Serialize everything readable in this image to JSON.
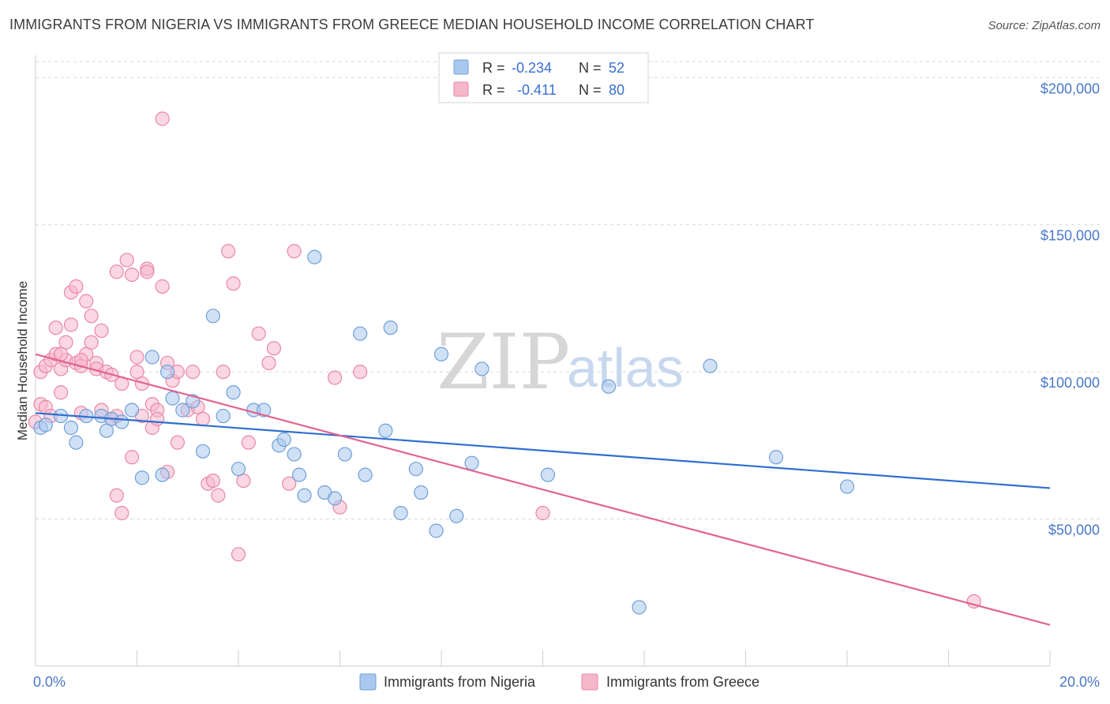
{
  "title": "IMMIGRANTS FROM NIGERIA VS IMMIGRANTS FROM GREECE MEDIAN HOUSEHOLD INCOME CORRELATION CHART",
  "source": "Source: ZipAtlas.com",
  "watermark": {
    "zip": "ZIP",
    "atlas": "atlas"
  },
  "colors": {
    "nigeria_fill": "#a9c8ee",
    "nigeria_stroke": "#6f9fd8",
    "nigeria_line": "#2f6fcf",
    "greece_fill": "#f5b7ca",
    "greece_stroke": "#e987a8",
    "greece_line": "#e0648f",
    "grid": "#d8d8d8",
    "tick_text": "#4a78c8"
  },
  "stats_box": {
    "rows": [
      {
        "r_label": "R =",
        "r_value": "-0.234",
        "n_label": "N =",
        "n_value": "52"
      },
      {
        "r_label": "R =",
        "r_value": "-0.411",
        "n_label": "N =",
        "n_value": "80"
      }
    ]
  },
  "chart_data": {
    "type": "scatter",
    "title": "IMMIGRANTS FROM NIGERIA VS IMMIGRANTS FROM GREECE MEDIAN HOUSEHOLD INCOME CORRELATION CHART",
    "xlabel": "",
    "ylabel": "Median Household Income",
    "xlim": [
      0,
      20
    ],
    "ylim": [
      0,
      210000
    ],
    "x_tick_labels": [
      {
        "value": 0,
        "label": "0.0%"
      },
      {
        "value": 20,
        "label": "20.0%"
      }
    ],
    "y_ticks": [
      {
        "value": 50000,
        "label": "$50,000"
      },
      {
        "value": 100000,
        "label": "$100,000"
      },
      {
        "value": 150000,
        "label": "$150,000"
      },
      {
        "value": 200000,
        "label": "$200,000"
      }
    ],
    "grid": "horizontal dashed",
    "legend_position": "bottom-center",
    "series": [
      {
        "name": "Immigrants from Nigeria",
        "trend": {
          "x": [
            0,
            20
          ],
          "y": [
            86000,
            60500
          ]
        },
        "points": [
          [
            0.1,
            81000
          ],
          [
            0.2,
            82000
          ],
          [
            0.5,
            85000
          ],
          [
            0.7,
            81000
          ],
          [
            0.8,
            76000
          ],
          [
            1.0,
            85000
          ],
          [
            1.3,
            85000
          ],
          [
            1.4,
            80000
          ],
          [
            1.5,
            84000
          ],
          [
            1.7,
            83000
          ],
          [
            1.9,
            87000
          ],
          [
            2.1,
            64000
          ],
          [
            2.3,
            105000
          ],
          [
            2.5,
            65000
          ],
          [
            2.6,
            100000
          ],
          [
            2.7,
            91000
          ],
          [
            2.9,
            87000
          ],
          [
            3.1,
            90000
          ],
          [
            3.3,
            73000
          ],
          [
            3.5,
            119000
          ],
          [
            3.7,
            85000
          ],
          [
            3.9,
            93000
          ],
          [
            4.0,
            67000
          ],
          [
            4.3,
            87000
          ],
          [
            4.5,
            87000
          ],
          [
            4.8,
            75000
          ],
          [
            4.9,
            77000
          ],
          [
            5.1,
            72000
          ],
          [
            5.2,
            65000
          ],
          [
            5.3,
            58000
          ],
          [
            5.5,
            139000
          ],
          [
            5.7,
            59000
          ],
          [
            5.9,
            57000
          ],
          [
            6.1,
            72000
          ],
          [
            6.4,
            113000
          ],
          [
            6.5,
            65000
          ],
          [
            6.9,
            80000
          ],
          [
            7.0,
            115000
          ],
          [
            7.2,
            52000
          ],
          [
            7.5,
            67000
          ],
          [
            7.6,
            59000
          ],
          [
            7.9,
            46000
          ],
          [
            8.0,
            106000
          ],
          [
            8.3,
            51000
          ],
          [
            8.6,
            69000
          ],
          [
            8.8,
            101000
          ],
          [
            10.1,
            65000
          ],
          [
            11.3,
            95000
          ],
          [
            11.9,
            20000
          ],
          [
            13.3,
            102000
          ],
          [
            14.6,
            71000
          ],
          [
            16.0,
            61000
          ]
        ]
      },
      {
        "name": "Immigrants from Greece",
        "trend": {
          "x": [
            0,
            20
          ],
          "y": [
            106000,
            14000
          ]
        },
        "points": [
          [
            0.0,
            83000
          ],
          [
            0.1,
            89000
          ],
          [
            0.1,
            100000
          ],
          [
            0.2,
            102000
          ],
          [
            0.2,
            88000
          ],
          [
            0.3,
            85000
          ],
          [
            0.3,
            104000
          ],
          [
            0.4,
            115000
          ],
          [
            0.4,
            106000
          ],
          [
            0.5,
            93000
          ],
          [
            0.5,
            101000
          ],
          [
            0.6,
            110000
          ],
          [
            0.6,
            104000
          ],
          [
            0.7,
            127000
          ],
          [
            0.7,
            116000
          ],
          [
            0.8,
            103000
          ],
          [
            0.8,
            129000
          ],
          [
            0.9,
            86000
          ],
          [
            0.9,
            102000
          ],
          [
            1.0,
            124000
          ],
          [
            1.0,
            106000
          ],
          [
            1.1,
            110000
          ],
          [
            1.1,
            119000
          ],
          [
            1.2,
            103000
          ],
          [
            1.2,
            101000
          ],
          [
            1.3,
            114000
          ],
          [
            1.3,
            87000
          ],
          [
            1.4,
            100000
          ],
          [
            1.5,
            99000
          ],
          [
            1.5,
            84000
          ],
          [
            1.6,
            134000
          ],
          [
            1.6,
            58000
          ],
          [
            1.7,
            96000
          ],
          [
            1.7,
            52000
          ],
          [
            1.8,
            138000
          ],
          [
            1.9,
            133000
          ],
          [
            1.9,
            71000
          ],
          [
            2.0,
            105000
          ],
          [
            2.0,
            100000
          ],
          [
            2.1,
            85000
          ],
          [
            2.1,
            96000
          ],
          [
            2.2,
            135000
          ],
          [
            2.2,
            134000
          ],
          [
            2.3,
            89000
          ],
          [
            2.3,
            81000
          ],
          [
            2.4,
            87000
          ],
          [
            2.5,
            186000
          ],
          [
            2.5,
            129000
          ],
          [
            2.6,
            66000
          ],
          [
            2.6,
            103000
          ],
          [
            2.7,
            97000
          ],
          [
            2.8,
            100000
          ],
          [
            2.8,
            76000
          ],
          [
            3.0,
            87000
          ],
          [
            3.1,
            100000
          ],
          [
            3.2,
            88000
          ],
          [
            3.3,
            84000
          ],
          [
            3.4,
            62000
          ],
          [
            3.5,
            63000
          ],
          [
            3.6,
            58000
          ],
          [
            3.7,
            100000
          ],
          [
            3.8,
            141000
          ],
          [
            3.9,
            130000
          ],
          [
            4.0,
            38000
          ],
          [
            4.1,
            63000
          ],
          [
            4.2,
            76000
          ],
          [
            4.4,
            113000
          ],
          [
            4.6,
            103000
          ],
          [
            4.7,
            108000
          ],
          [
            5.0,
            62000
          ],
          [
            5.1,
            141000
          ],
          [
            5.9,
            98000
          ],
          [
            6.0,
            54000
          ],
          [
            6.4,
            100000
          ],
          [
            10.0,
            52000
          ],
          [
            18.5,
            22000
          ],
          [
            0.5,
            106000
          ],
          [
            0.9,
            104000
          ],
          [
            1.6,
            85000
          ],
          [
            2.4,
            84000
          ]
        ]
      }
    ]
  }
}
